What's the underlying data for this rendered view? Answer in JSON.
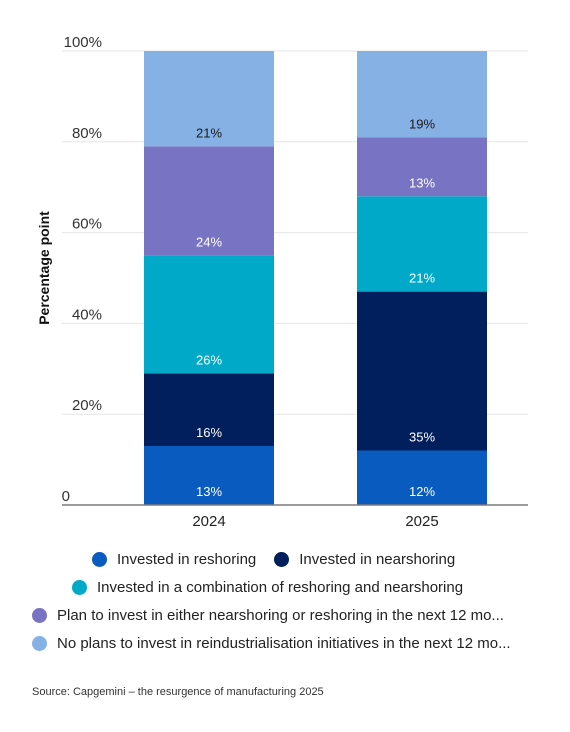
{
  "chart_data": {
    "type": "bar",
    "stacked": true,
    "categories": [
      "2024",
      "2025"
    ],
    "ylabel": "Percentage point",
    "ylim": [
      0,
      100
    ],
    "yticks": [
      "0",
      "20%",
      "40%",
      "60%",
      "80%",
      "100%"
    ],
    "series": [
      {
        "name": "Invested in reshoring",
        "color": "#0a5bbf",
        "values": [
          13,
          12
        ],
        "labels": [
          "13%",
          "12%"
        ]
      },
      {
        "name": "Invested in nearshoring",
        "color": "#001f5c",
        "values": [
          16,
          35
        ],
        "labels": [
          "16%",
          "35%"
        ]
      },
      {
        "name": "Invested in a combination of reshoring and nearshoring",
        "color": "#00a9c7",
        "values": [
          26,
          21
        ],
        "labels": [
          "26%",
          "21%"
        ]
      },
      {
        "name": "Plan to invest in either nearshoring or reshoring in the next 12 mo...",
        "color": "#7873c3",
        "values": [
          24,
          13
        ],
        "labels": [
          "24%",
          "13%"
        ]
      },
      {
        "name": "No plans to invest in reindustrialisation initiatives in the next 12 mo...",
        "color": "#86b1e5",
        "values": [
          21,
          19
        ],
        "labels": [
          "21%",
          "19%"
        ]
      }
    ],
    "grid": true,
    "legend_position": "bottom"
  },
  "source": "Source: Capgemini – the resurgence of manufacturing 2025"
}
